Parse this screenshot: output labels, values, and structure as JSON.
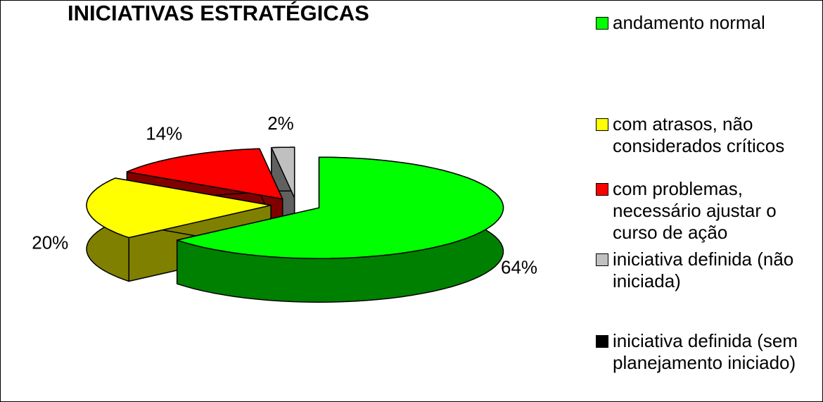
{
  "chart_data": {
    "type": "pie3d",
    "title": "INICIATIVAS ESTRATÉGICAS",
    "categories": [
      "andamento normal",
      "com atrasos, não considerados críticos",
      "com problemas, necessário ajustar o curso de ação",
      "iniciativa definida (não iniciada)",
      "iniciativa definida (sem planejamento iniciado)"
    ],
    "values": [
      64,
      20,
      14,
      2,
      0
    ],
    "value_labels": [
      "64%",
      "20%",
      "14%",
      "2%",
      null
    ],
    "colors": [
      "#00ff00",
      "#ffff00",
      "#ff0000",
      "#c0c0c0",
      "#000000"
    ],
    "side_colors": [
      "#008000",
      "#808000",
      "#800000",
      "#606060",
      "#000000"
    ],
    "legend": "right"
  }
}
